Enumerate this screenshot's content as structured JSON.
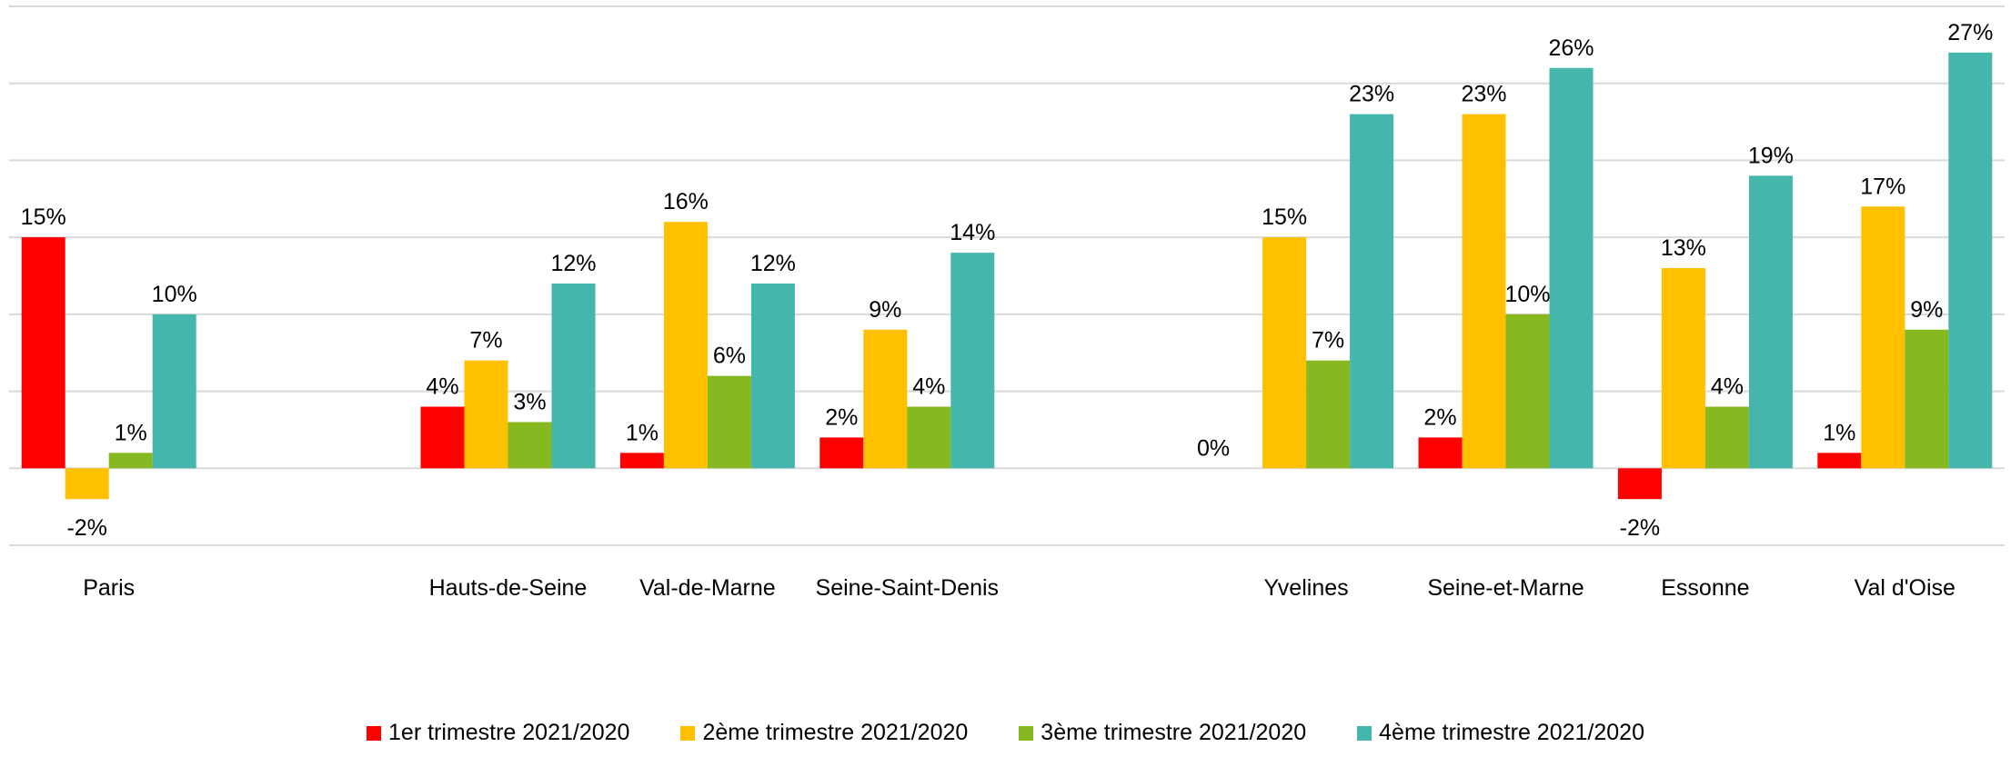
{
  "chart_data": {
    "type": "bar",
    "categories": [
      "Paris",
      null,
      "Hauts-de-Seine",
      "Val-de-Marne",
      "Seine-Saint-Denis",
      null,
      "Yvelines",
      "Seine-et-Marne",
      "Essonne",
      "Val d'Oise"
    ],
    "series": [
      {
        "name": "1er trimestre 2021/2020",
        "color": "#ff0000",
        "values": [
          15,
          null,
          4,
          1,
          2,
          null,
          0,
          2,
          -2,
          1
        ],
        "value_labels": [
          "15%",
          null,
          "4%",
          "1%",
          "2%",
          null,
          "0%",
          "2%",
          "-2%",
          "1%"
        ]
      },
      {
        "name": "2ème trimestre 2021/2020",
        "color": "#ffc000",
        "values": [
          -2,
          null,
          7,
          16,
          9,
          null,
          15,
          23,
          13,
          17
        ],
        "value_labels": [
          "-2%",
          null,
          "7%",
          "16%",
          "9%",
          null,
          "15%",
          "23%",
          "13%",
          "17%"
        ]
      },
      {
        "name": "3ème trimestre 2021/2020",
        "color": "#86b81f",
        "values": [
          1,
          null,
          3,
          6,
          4,
          null,
          7,
          10,
          4,
          9
        ],
        "value_labels": [
          "1%",
          null,
          "3%",
          "6%",
          "4%",
          null,
          "7%",
          "10%",
          "4%",
          "9%"
        ]
      },
      {
        "name": "4ème trimestre 2021/2020",
        "color": "#45b6ac",
        "values": [
          10,
          null,
          12,
          12,
          14,
          null,
          23,
          26,
          19,
          27
        ],
        "value_labels": [
          "10%",
          null,
          "12%",
          "12%",
          "14%",
          null,
          "23%",
          "26%",
          "19%",
          "27%"
        ]
      }
    ],
    "ylim": [
      -5,
      30
    ],
    "yticks": [
      -5,
      0,
      5,
      10,
      15,
      20,
      25,
      30
    ],
    "grid": true
  }
}
